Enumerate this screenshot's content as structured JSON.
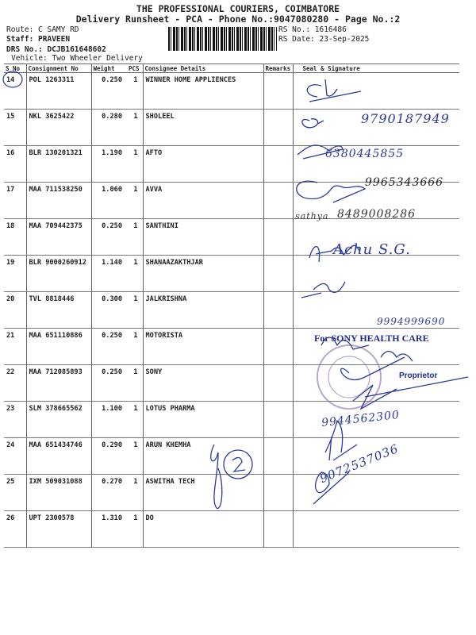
{
  "header": {
    "company": "THE PROFESSIONAL COURIERS, COIMBATORE",
    "subtitle": "Delivery Runsheet - PCA - Phone No.:9047080280 - Page No.:2",
    "route": "Route: C SAMY RD",
    "staff": "Staff: PRAVEEN",
    "drs": "DRS No.: DCJB161648602",
    "vehicle": "Vehicle: Two Wheeler Delivery",
    "rs_no": "RS No.: 1616486",
    "rs_date": "RS Date: 23-Sep-2025"
  },
  "columns": [
    "S No",
    "Consignment No",
    "Weight",
    "PCS",
    "Consignee Details",
    "Remarks",
    "Seal & Signature"
  ],
  "rows": [
    {
      "sno": "14",
      "cons": "POL 1263311",
      "weight": "0.250",
      "pcs": "1",
      "consignee": "WINNER HOME APPLIENCES",
      "remarks": ""
    },
    {
      "sno": "15",
      "cons": "NKL 3625422",
      "weight": "0.280",
      "pcs": "1",
      "consignee": "SHOLEEL",
      "remarks": ""
    },
    {
      "sno": "16",
      "cons": "BLR 130201321",
      "weight": "1.190",
      "pcs": "1",
      "consignee": "AFTO",
      "remarks": ""
    },
    {
      "sno": "17",
      "cons": "MAA 711538250",
      "weight": "1.060",
      "pcs": "1",
      "consignee": "AVVA",
      "remarks": ""
    },
    {
      "sno": "18",
      "cons": "MAA 709442375",
      "weight": "0.250",
      "pcs": "1",
      "consignee": "SANTHINI",
      "remarks": ""
    },
    {
      "sno": "19",
      "cons": "BLR 9000260912",
      "weight": "1.140",
      "pcs": "1",
      "consignee": "SHANAAZAKTHJAR",
      "remarks": ""
    },
    {
      "sno": "20",
      "cons": "TVL 8818446",
      "weight": "0.300",
      "pcs": "1",
      "consignee": "JALKRISHNA",
      "remarks": ""
    },
    {
      "sno": "21",
      "cons": "MAA 651110886",
      "weight": "0.250",
      "pcs": "1",
      "consignee": "MOTORISTA",
      "remarks": ""
    },
    {
      "sno": "22",
      "cons": "MAA 712085893",
      "weight": "0.250",
      "pcs": "1",
      "consignee": "SONY",
      "remarks": ""
    },
    {
      "sno": "23",
      "cons": "SLM 378665562",
      "weight": "1.100",
      "pcs": "1",
      "consignee": "LOTUS PHARMA",
      "remarks": ""
    },
    {
      "sno": "24",
      "cons": "MAA 651434746",
      "weight": "0.290",
      "pcs": "1",
      "consignee": "ARUN KHEMHA",
      "remarks": ""
    },
    {
      "sno": "25",
      "cons": "IXM 509031088",
      "weight": "0.270",
      "pcs": "1",
      "consignee": "ASWITHA TECH",
      "remarks": ""
    },
    {
      "sno": "26",
      "cons": "UPT 2300578",
      "weight": "1.310",
      "pcs": "1",
      "consignee": "DO",
      "remarks": ""
    }
  ],
  "handwritten": {
    "r15": "9790187949",
    "r16": "6380445855",
    "r17": "9965343666",
    "r18_name": "sathya",
    "r18": "8489008286",
    "r19": "Achu S.G.",
    "r21": "9994999690",
    "r24": "9944562300",
    "r25": "9072537036"
  },
  "stamps": {
    "sony": "For SONY HEALTH CARE",
    "proprietor": "Proprietor"
  },
  "colors": {
    "ink": "#2a3a9a",
    "stamp": "#8a6aa8"
  }
}
